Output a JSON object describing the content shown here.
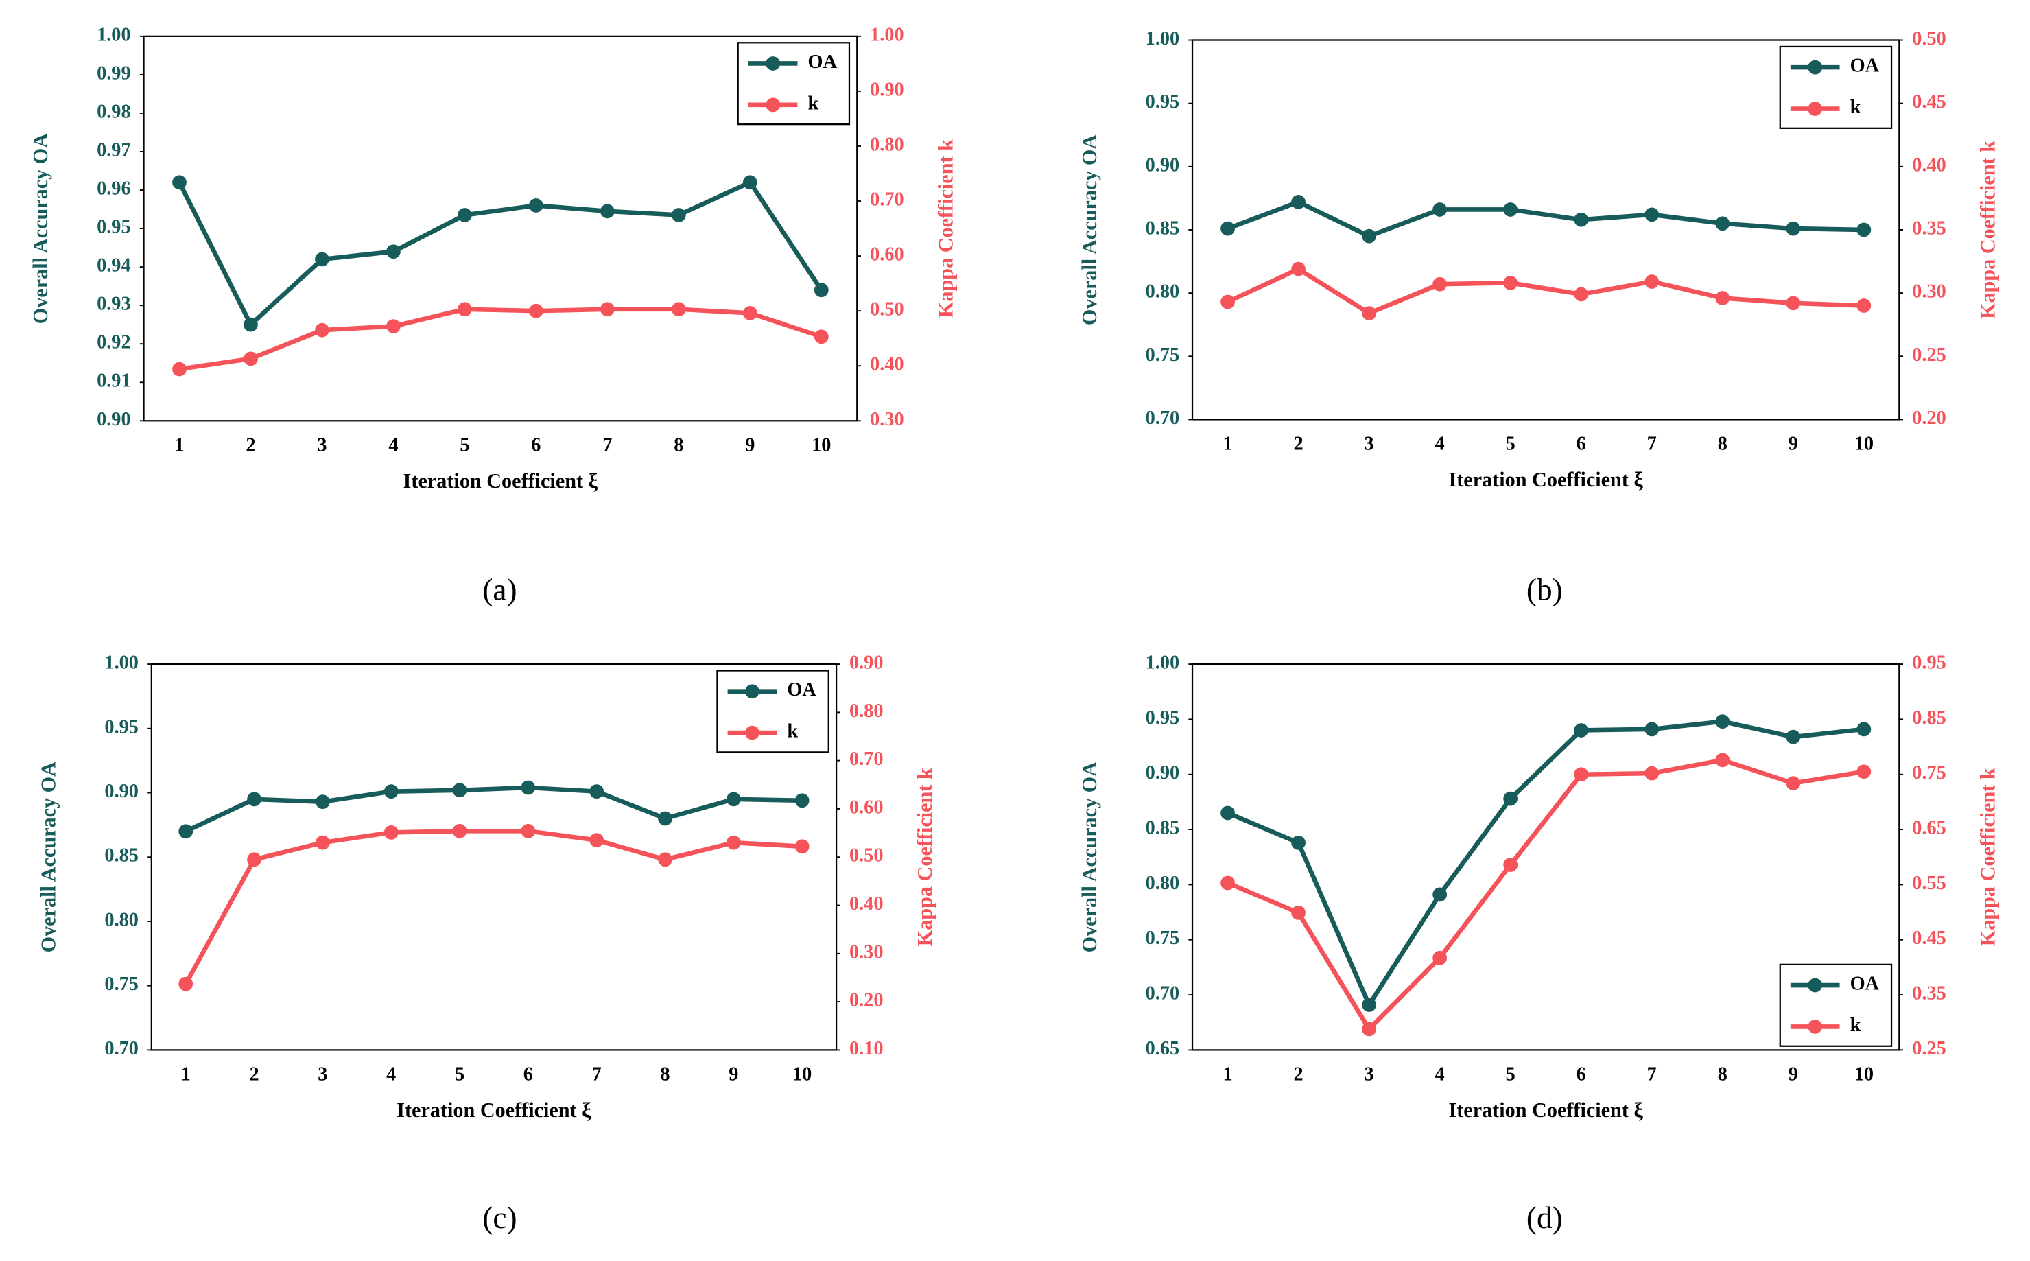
{
  "chart_data": [
    {
      "type": "line",
      "caption": "(a)",
      "xlabel": "Iteration Coefficient ξ",
      "ylabel": "Overall Accuracy OA",
      "y2label": "Kappa Coefficient k",
      "legend": "upper right",
      "categories": [
        1,
        2,
        3,
        4,
        5,
        6,
        7,
        8,
        9,
        10
      ],
      "series": [
        {
          "name": "OA",
          "color": "#175c5a",
          "values": [
            0.962,
            0.925,
            0.942,
            0.944,
            0.9535,
            0.956,
            0.9545,
            0.9535,
            0.962,
            0.934
          ]
        },
        {
          "name": "k",
          "color": "#f5535a",
          "axis": "y2",
          "values": [
            0.394,
            0.413,
            0.465,
            0.472,
            0.503,
            0.5,
            0.503,
            0.503,
            0.496,
            0.453
          ]
        }
      ],
      "ylim": [
        0.9,
        1.0
      ],
      "yticks": [
        {
          "value": 0.9,
          "label": "0.90"
        },
        0.91,
        0.92,
        0.93,
        0.94,
        0.95,
        0.96,
        0.97,
        0.98,
        0.99,
        {
          "value": 1.0,
          "label": "1.00"
        }
      ],
      "y2lim": [
        0.3,
        1.0
      ],
      "y2ticks": [
        {
          "value": 0.3,
          "label": "0.30"
        },
        {
          "value": 0.4,
          "label": "0.40"
        },
        {
          "value": 0.5,
          "label": "0.50"
        },
        {
          "value": 0.6,
          "label": "0.60"
        },
        {
          "value": 0.7,
          "label": "0.70"
        },
        {
          "value": 0.8,
          "label": "0.80"
        },
        {
          "value": 0.9,
          "label": "0.90"
        },
        {
          "value": 1.0,
          "label": "1.00"
        }
      ]
    },
    {
      "type": "line",
      "caption": "(b)",
      "xlabel": "Iteration Coefficient ξ",
      "ylabel": "Overall Accuracy OA",
      "y2label": "Kappa Coefficient k",
      "legend": "upper right",
      "categories": [
        1,
        2,
        3,
        4,
        5,
        6,
        7,
        8,
        9,
        10
      ],
      "series": [
        {
          "name": "OA",
          "color": "#175c5a",
          "values": [
            0.851,
            0.872,
            0.845,
            0.866,
            0.866,
            0.858,
            0.862,
            0.855,
            0.851,
            0.85
          ]
        },
        {
          "name": "k",
          "color": "#f5535a",
          "axis": "y2",
          "values": [
            0.293,
            0.319,
            0.284,
            0.307,
            0.308,
            0.299,
            0.309,
            0.296,
            0.292,
            0.29
          ]
        }
      ],
      "ylim": [
        0.7,
        1.0
      ],
      "yticks": [
        {
          "value": 0.7,
          "label": "0.70"
        },
        0.75,
        {
          "value": 0.8,
          "label": "0.80"
        },
        0.85,
        {
          "value": 0.9,
          "label": "0.90"
        },
        0.95,
        {
          "value": 1.0,
          "label": "1.00"
        }
      ],
      "y2lim": [
        0.2,
        0.5
      ],
      "y2ticks": [
        {
          "value": 0.2,
          "label": "0.20"
        },
        0.25,
        {
          "value": 0.3,
          "label": "0.30"
        },
        0.35,
        {
          "value": 0.4,
          "label": "0.40"
        },
        0.45,
        {
          "value": 0.5,
          "label": "0.50"
        }
      ]
    },
    {
      "type": "line",
      "caption": "(c)",
      "xlabel": "Iteration Coefficient ξ",
      "ylabel": "Overall Accuracy OA",
      "y2label": "Kappa Coefficient k",
      "legend": "upper right",
      "categories": [
        1,
        2,
        3,
        4,
        5,
        6,
        7,
        8,
        9,
        10
      ],
      "series": [
        {
          "name": "OA",
          "color": "#175c5a",
          "values": [
            0.87,
            0.895,
            0.893,
            0.901,
            0.902,
            0.904,
            0.901,
            0.88,
            0.895,
            0.894
          ]
        },
        {
          "name": "k",
          "color": "#f5535a",
          "axis": "y2",
          "values": [
            0.237,
            0.495,
            0.53,
            0.551,
            0.554,
            0.554,
            0.535,
            0.495,
            0.53,
            0.522
          ]
        }
      ],
      "ylim": [
        0.7,
        1.0
      ],
      "yticks": [
        {
          "value": 0.7,
          "label": "0.70"
        },
        0.75,
        {
          "value": 0.8,
          "label": "0.80"
        },
        0.85,
        {
          "value": 0.9,
          "label": "0.90"
        },
        0.95,
        {
          "value": 1.0,
          "label": "1.00"
        }
      ],
      "y2lim": [
        0.1,
        0.9
      ],
      "y2ticks": [
        {
          "value": 0.1,
          "label": "0.10"
        },
        {
          "value": 0.2,
          "label": "0.20"
        },
        {
          "value": 0.3,
          "label": "0.30"
        },
        {
          "value": 0.4,
          "label": "0.40"
        },
        {
          "value": 0.5,
          "label": "0.50"
        },
        {
          "value": 0.6,
          "label": "0.60"
        },
        {
          "value": 0.7,
          "label": "0.70"
        },
        {
          "value": 0.8,
          "label": "0.80"
        },
        {
          "value": 0.9,
          "label": "0.90"
        }
      ]
    },
    {
      "type": "line",
      "caption": "(d)",
      "xlabel": "Iteration Coefficient ξ",
      "ylabel": "Overall Accuracy OA",
      "y2label": "Kappa Coefficient k",
      "legend": "lower right",
      "categories": [
        1,
        2,
        3,
        4,
        5,
        6,
        7,
        8,
        9,
        10
      ],
      "series": [
        {
          "name": "OA",
          "color": "#175c5a",
          "values": [
            0.865,
            0.838,
            0.691,
            0.791,
            0.878,
            0.94,
            0.941,
            0.948,
            0.934,
            0.941
          ]
        },
        {
          "name": "k",
          "color": "#f5535a",
          "axis": "y2",
          "values": [
            0.553,
            0.499,
            0.288,
            0.417,
            0.586,
            0.75,
            0.752,
            0.776,
            0.734,
            0.755
          ]
        }
      ],
      "ylim": [
        0.65,
        1.0
      ],
      "yticks": [
        0.65,
        {
          "value": 0.7,
          "label": "0.70"
        },
        0.75,
        {
          "value": 0.8,
          "label": "0.80"
        },
        0.85,
        {
          "value": 0.9,
          "label": "0.90"
        },
        0.95,
        {
          "value": 1.0,
          "label": "1.00"
        }
      ],
      "y2lim": [
        0.25,
        0.95
      ],
      "y2ticks": [
        0.25,
        0.35,
        0.45,
        0.55,
        0.65,
        0.75,
        0.85,
        0.95
      ]
    }
  ]
}
